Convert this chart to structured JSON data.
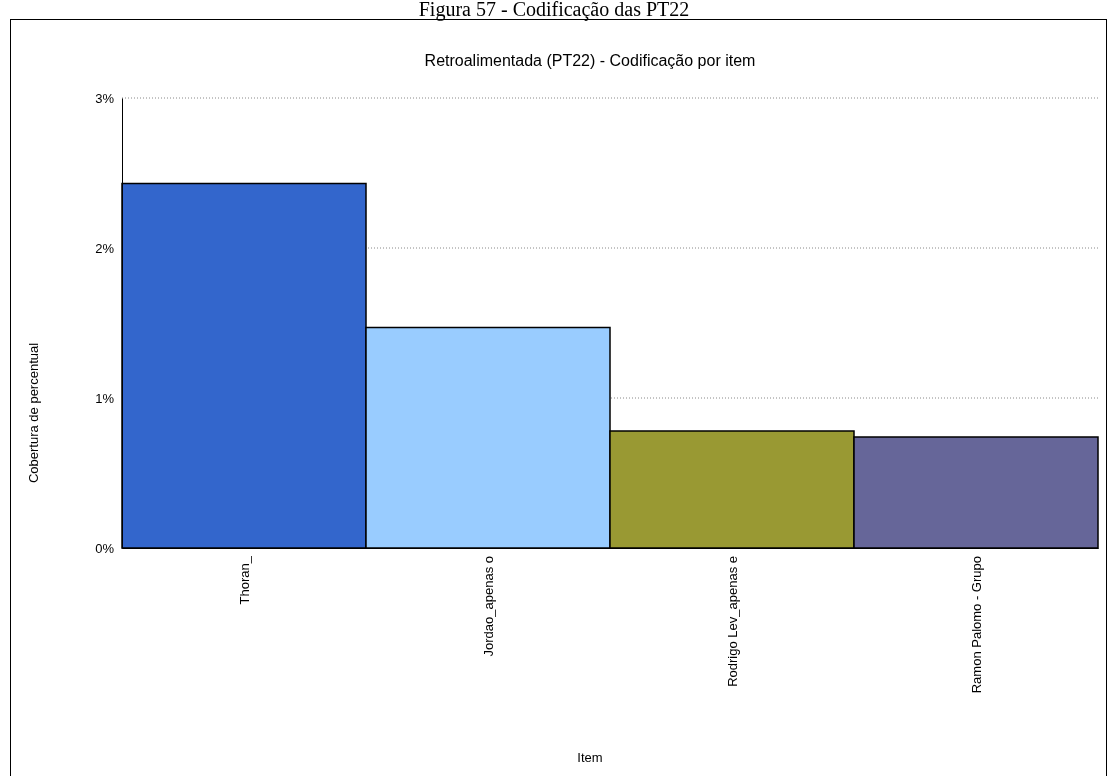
{
  "chart_data": {
    "type": "bar",
    "title": "Retroalimentada (PT22) - Codificação por item",
    "xlabel": "Item",
    "ylabel": "Cobertura de percentual",
    "annotations": [
      "Figura 57 - Codificação das PT22"
    ],
    "categories": [
      "Thoran_",
      "Jordao_apenas o",
      "Rodrigo Lev_apenas e",
      "Ramon Palomo - Grupo"
    ],
    "values": [
      2.43,
      1.47,
      0.78,
      0.74
    ],
    "colors": [
      "#3366cc",
      "#99ccff",
      "#999933",
      "#666699"
    ],
    "ylim": [
      0,
      3
    ],
    "yticks": [
      {
        "value": 0,
        "label": "0%"
      },
      {
        "value": 1,
        "label": "1%"
      },
      {
        "value": 2,
        "label": "2%"
      },
      {
        "value": 3,
        "label": "3%"
      }
    ],
    "grid": "y"
  }
}
